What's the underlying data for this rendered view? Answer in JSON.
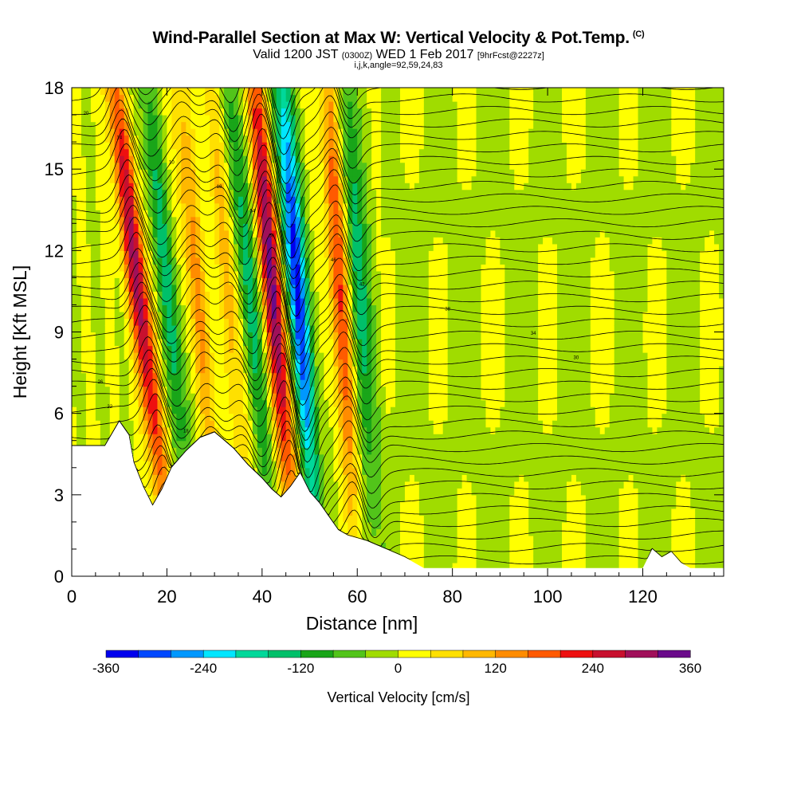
{
  "figure": {
    "title": "Wind-Parallel Section at Max W: Vertical Velocity & Pot.Temp.",
    "title_mark": "(C)",
    "subtitle_pre": "Valid 1200 JST",
    "subtitle_utc": "(0300Z)",
    "subtitle_date": "WED 1 Feb 2017",
    "subtitle_fcst": "[9hrFcst@2227z]",
    "line3": "i,j,k,angle=92,59,24,83"
  },
  "chart_data": {
    "type": "heatmap",
    "xlabel": "Distance [nm]",
    "ylabel": "Height [Kft MSL]",
    "xlim": [
      0,
      137
    ],
    "ylim": [
      0,
      18
    ],
    "xticks": [
      0,
      20,
      40,
      60,
      80,
      100,
      120
    ],
    "yticks": [
      0,
      3,
      6,
      9,
      12,
      15,
      18
    ],
    "colorbar": {
      "title": "Vertical Velocity [cm/s]",
      "range": [
        -360,
        360
      ],
      "ticks": [
        -360,
        -240,
        -120,
        0,
        120,
        240,
        360
      ],
      "colors": [
        "#0000ee",
        "#0048ff",
        "#0098ff",
        "#00e6ff",
        "#00d89a",
        "#00c06a",
        "#19a519",
        "#52c41a",
        "#a0dc00",
        "#ffff00",
        "#ffe000",
        "#ffb800",
        "#ff8c00",
        "#ff5a00",
        "#ee1010",
        "#c8102e",
        "#a0105a",
        "#6a0a8a"
      ]
    },
    "updrafts_downdrafts": [
      {
        "x": 15,
        "w": 300,
        "lean": 8
      },
      {
        "x": 27,
        "w": 130,
        "lean": 6
      },
      {
        "x": 43,
        "w": 330,
        "lean": 6
      },
      {
        "x": 48,
        "w": -340,
        "lean": 5
      },
      {
        "x": 38,
        "w": -150,
        "lean": 6
      },
      {
        "x": 21,
        "w": -140,
        "lean": 7
      },
      {
        "x": 57,
        "w": 200,
        "lean": 4
      },
      {
        "x": 61,
        "w": -160,
        "lean": 4
      },
      {
        "x": 34,
        "w": 100,
        "lean": 6
      }
    ],
    "terrain_kft": [
      [
        0,
        4.8
      ],
      [
        7,
        4.8
      ],
      [
        10,
        5.7
      ],
      [
        12,
        5.2
      ],
      [
        13,
        4.2
      ],
      [
        15,
        3.3
      ],
      [
        17,
        2.6
      ],
      [
        19,
        3.2
      ],
      [
        21,
        4.0
      ],
      [
        24,
        4.6
      ],
      [
        27,
        5.1
      ],
      [
        30,
        5.3
      ],
      [
        34,
        4.7
      ],
      [
        37,
        4.1
      ],
      [
        40,
        3.6
      ],
      [
        42,
        3.2
      ],
      [
        44,
        2.9
      ],
      [
        46,
        3.3
      ],
      [
        48,
        3.8
      ],
      [
        50,
        3.1
      ],
      [
        52,
        2.7
      ],
      [
        54,
        2.2
      ],
      [
        56,
        1.7
      ],
      [
        58,
        1.5
      ],
      [
        62,
        1.3
      ],
      [
        66,
        1.0
      ],
      [
        70,
        0.7
      ],
      [
        74,
        0.3
      ],
      [
        76,
        0.3
      ],
      [
        120,
        0.3
      ],
      [
        122,
        1.0
      ],
      [
        124,
        0.7
      ],
      [
        126,
        0.9
      ],
      [
        128,
        0.5
      ],
      [
        130,
        0.3
      ],
      [
        137,
        0.3
      ]
    ],
    "theta_contour_count": 40,
    "theta_labels": [
      "20",
      "14",
      "10",
      "18",
      "54",
      "50",
      "46",
      "42",
      "38",
      "34",
      "30",
      "26",
      "22",
      "18",
      "14",
      "10",
      "6",
      "2"
    ]
  }
}
